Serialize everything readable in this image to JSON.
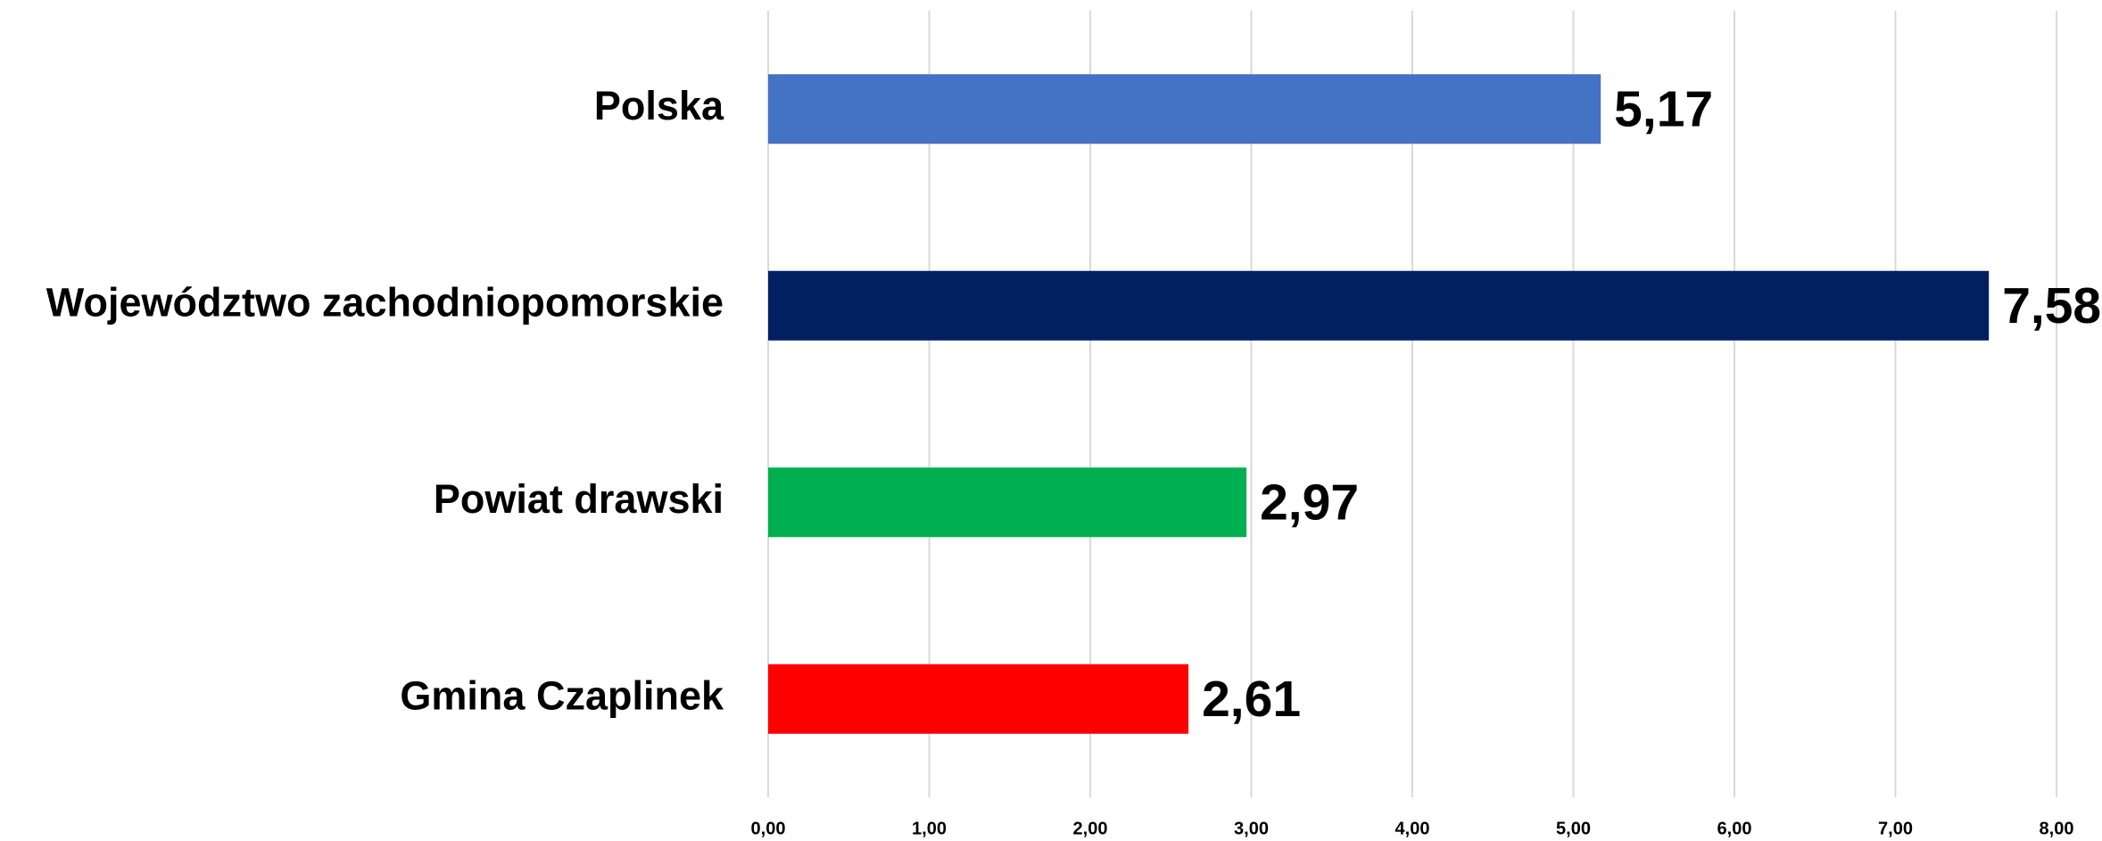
{
  "chart_data": {
    "type": "bar",
    "orientation": "horizontal",
    "categories": [
      "Polska",
      "Województwo zachodniopomorskie",
      "Powiat drawski",
      "Gmina Czaplinek"
    ],
    "values": [
      5.17,
      7.58,
      2.97,
      2.61
    ],
    "value_labels": [
      "5,17",
      "7,58",
      "2,97",
      "2,61"
    ],
    "colors": [
      "#4472c4",
      "#002060",
      "#00b050",
      "#ff0000"
    ],
    "xlim": [
      0,
      8
    ],
    "xticks": [
      {
        "value": 0,
        "label": "0,00"
      },
      {
        "value": 1,
        "label": "1,00"
      },
      {
        "value": 2,
        "label": "2,00"
      },
      {
        "value": 3,
        "label": "3,00"
      },
      {
        "value": 4,
        "label": "4,00"
      },
      {
        "value": 5,
        "label": "5,00"
      },
      {
        "value": 6,
        "label": "6,00"
      },
      {
        "value": 7,
        "label": "7,00"
      },
      {
        "value": 8,
        "label": "8,00"
      }
    ],
    "grid": true
  }
}
